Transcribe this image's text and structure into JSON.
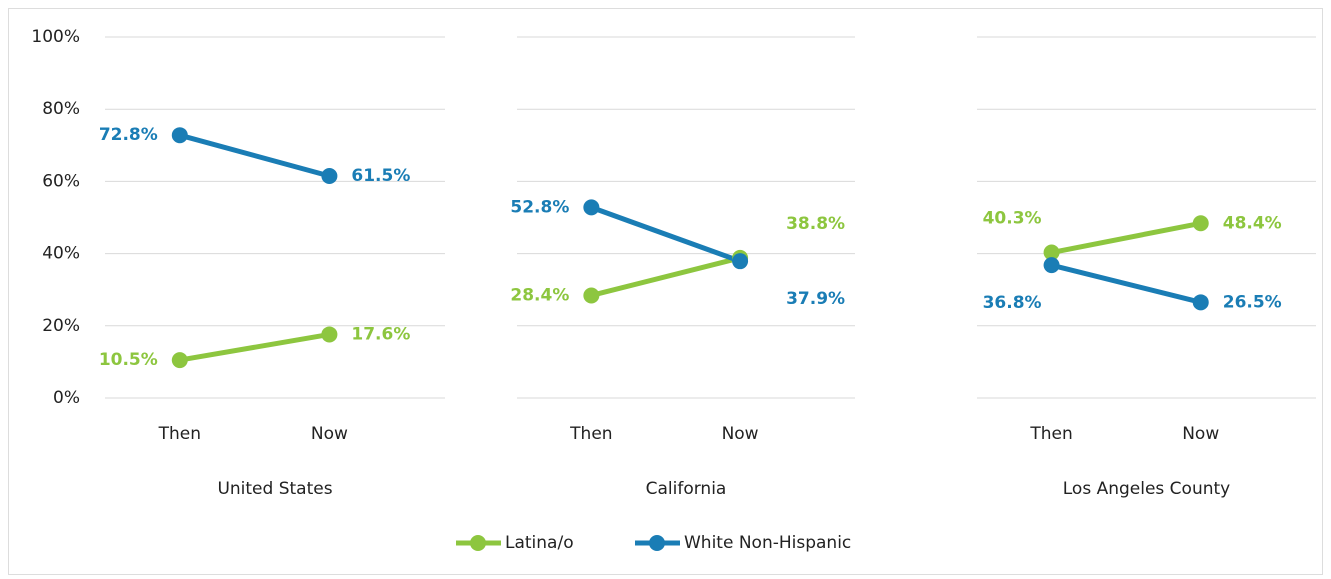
{
  "chart_data": {
    "type": "line",
    "ylim": [
      0,
      100
    ],
    "yticks": [
      {
        "value": 0,
        "label": "0%"
      },
      {
        "value": 20,
        "label": "20%"
      },
      {
        "value": 40,
        "label": "40%"
      },
      {
        "value": 60,
        "label": "60%"
      },
      {
        "value": 80,
        "label": "80%"
      },
      {
        "value": 100,
        "label": "100%"
      }
    ],
    "grid": true,
    "legend": "bottom",
    "series": [
      {
        "name": "Latina/o",
        "color": "#8dc63f"
      },
      {
        "name": "White Non-Hispanic",
        "color": "#1a7db5"
      }
    ],
    "panels": [
      {
        "title": "United States",
        "categories": [
          "Then",
          "Now"
        ],
        "series": [
          {
            "values": [
              10.5,
              17.6
            ],
            "value_labels": [
              "10.5%",
              "17.6%"
            ]
          },
          {
            "values": [
              72.8,
              61.5
            ],
            "value_labels": [
              "72.8%",
              "61.5%"
            ]
          }
        ]
      },
      {
        "title": "California",
        "categories": [
          "Then",
          "Now"
        ],
        "series": [
          {
            "values": [
              28.4,
              38.8
            ],
            "value_labels": [
              "28.4%",
              "38.8%"
            ]
          },
          {
            "values": [
              52.8,
              37.9
            ],
            "value_labels": [
              "52.8%",
              "37.9%"
            ]
          }
        ]
      },
      {
        "title": "Los Angeles County",
        "categories": [
          "Then",
          "Now"
        ],
        "series": [
          {
            "values": [
              40.3,
              48.4
            ],
            "value_labels": [
              "40.3%",
              "48.4%"
            ]
          },
          {
            "values": [
              36.8,
              26.5
            ],
            "value_labels": [
              "36.8%",
              "26.5%"
            ]
          }
        ]
      }
    ]
  }
}
